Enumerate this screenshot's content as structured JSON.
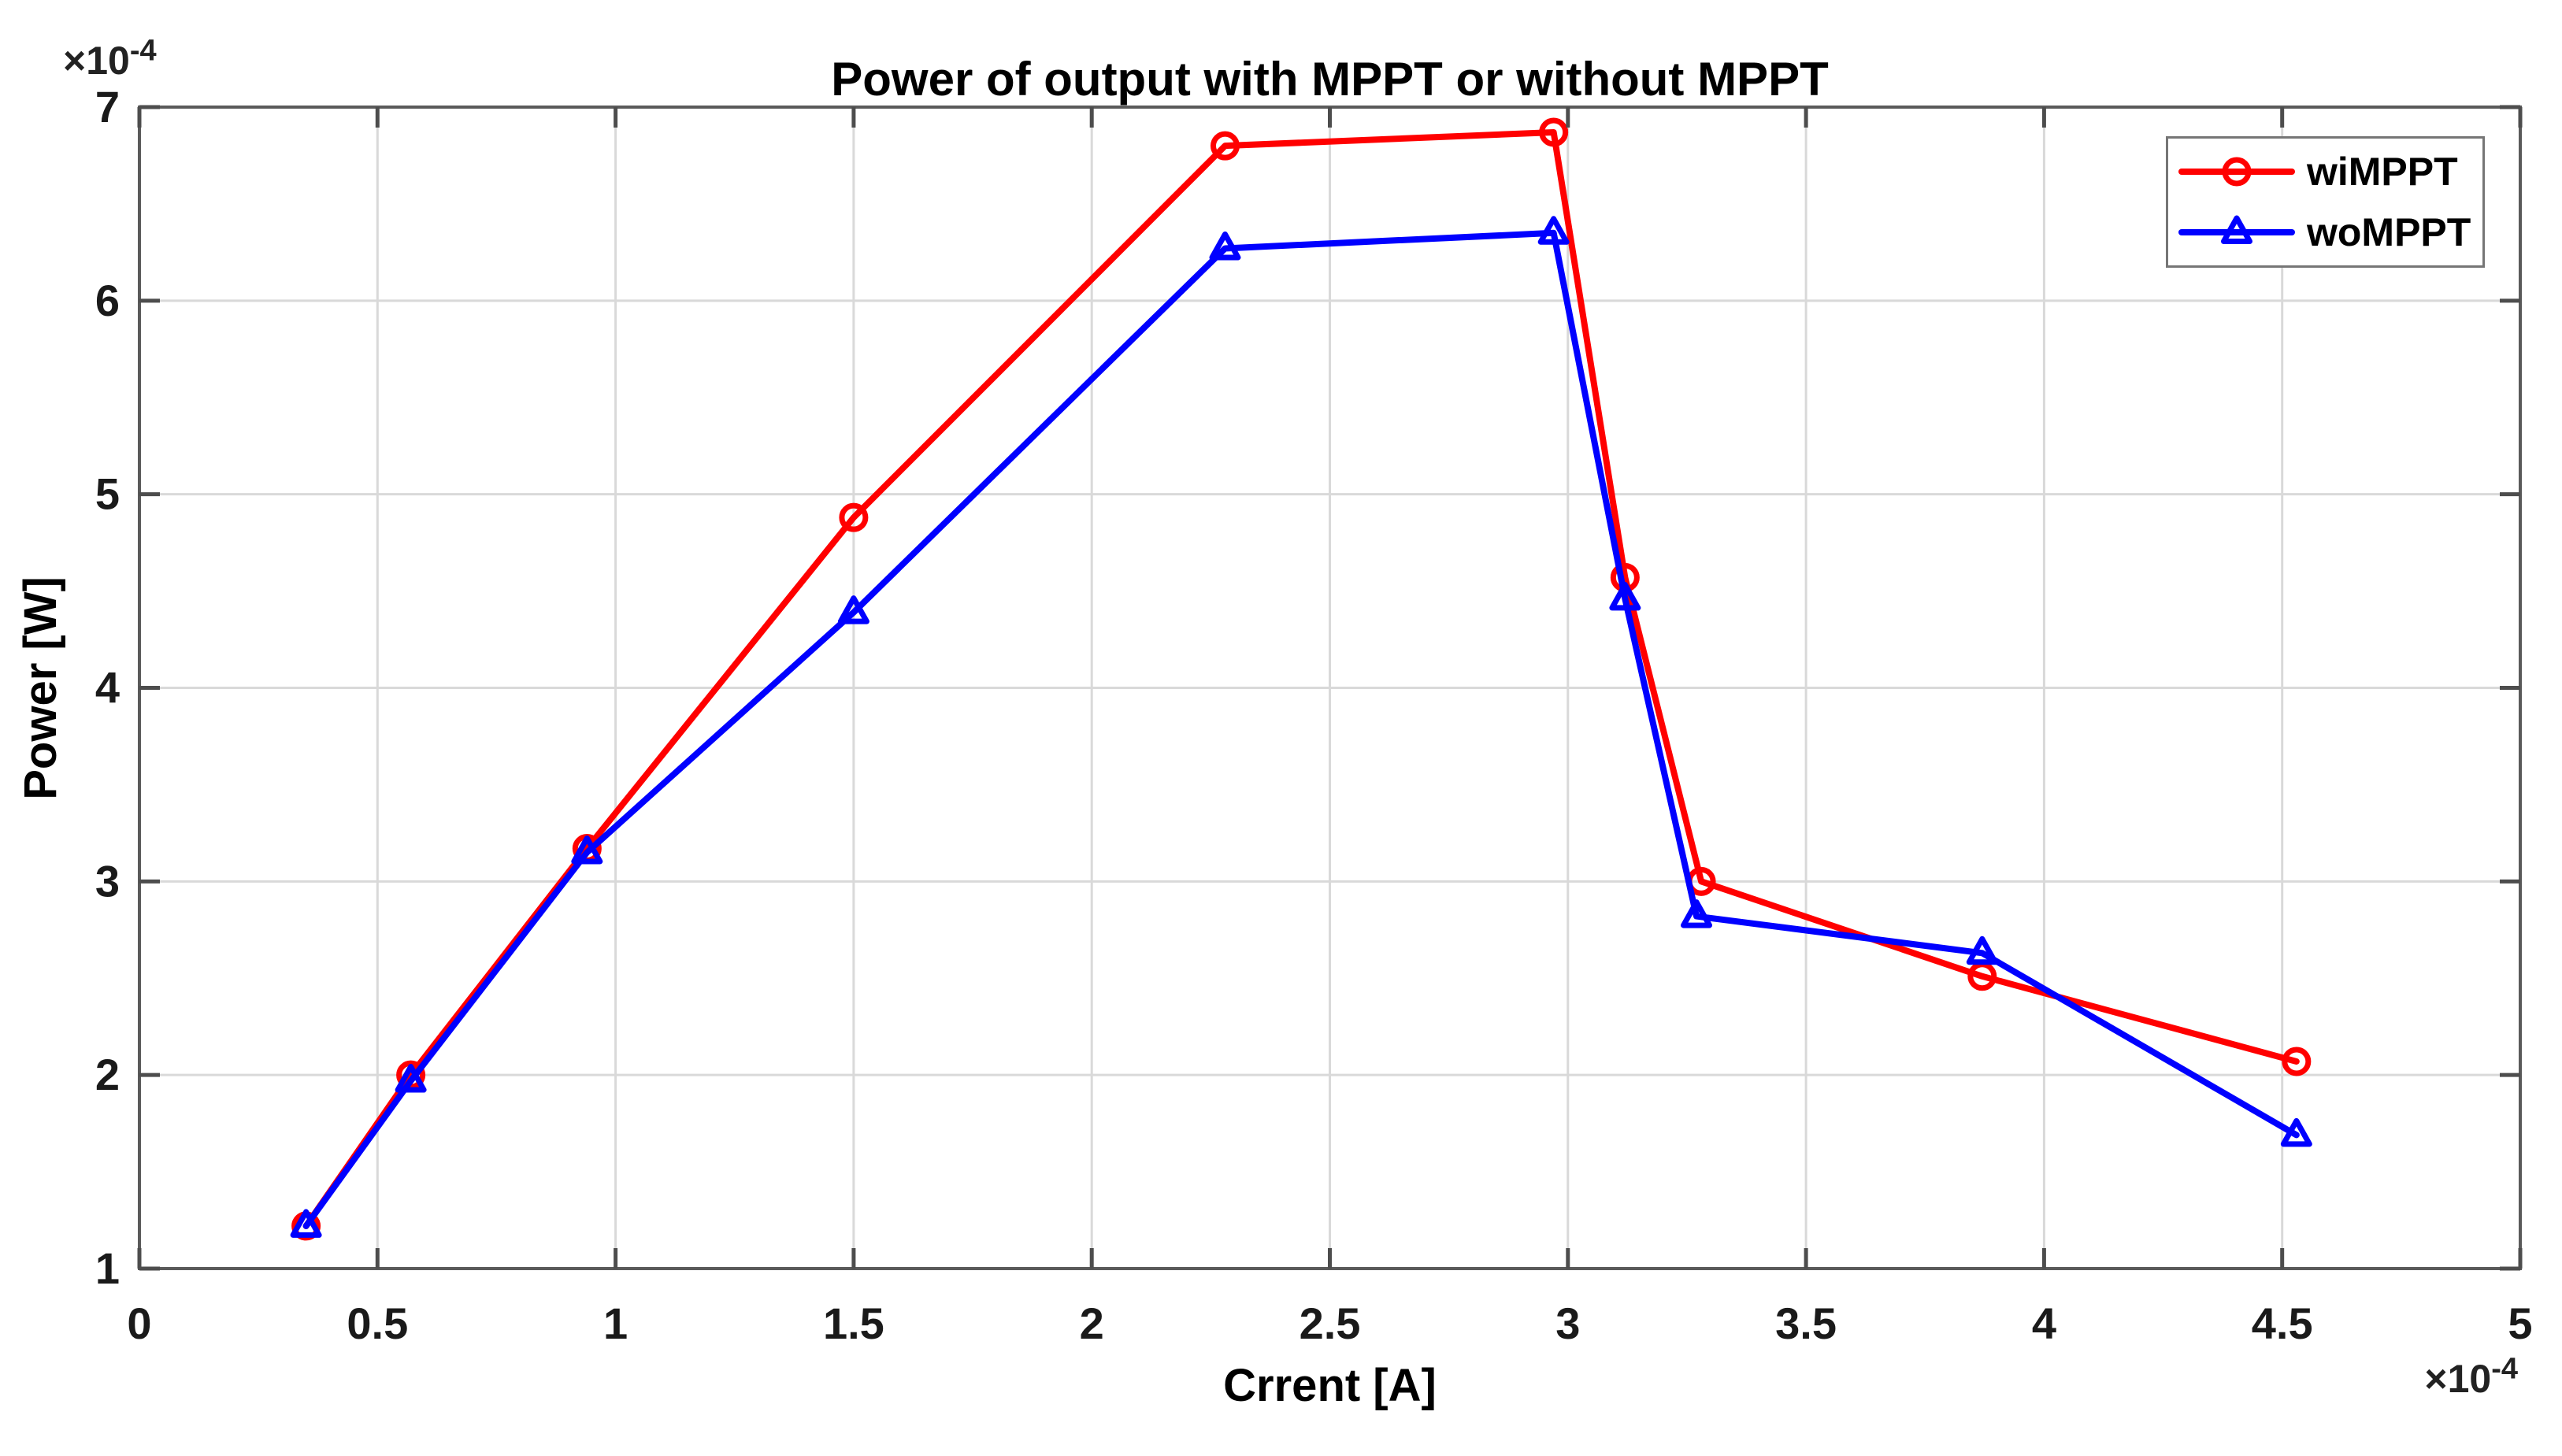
{
  "style": {
    "background": "#ffffff",
    "grid_color": "#d9d9d9",
    "axis_color": "#5a5a5a",
    "tick_color": "#4d4d4d",
    "tick_label_color": "#1a1a1a",
    "text_color": "#000000",
    "legend_border_color": "#767676"
  },
  "chart_data": {
    "type": "line",
    "title": "Power of output with MPPT or without MPPT",
    "xlabel": "Crrent [A]",
    "ylabel": "Power [W]",
    "x_scale_label": {
      "base": "×10",
      "exp": "-4"
    },
    "y_scale_label": {
      "base": "×10",
      "exp": "-4"
    },
    "xlim": [
      0,
      5
    ],
    "ylim": [
      1,
      7
    ],
    "x_ticks": [
      0,
      0.5,
      1,
      1.5,
      2,
      2.5,
      3,
      3.5,
      4,
      4.5,
      5
    ],
    "x_tick_labels": [
      "0",
      "0.5",
      "1",
      "1.5",
      "2",
      "2.5",
      "3",
      "3.5",
      "4",
      "4.5",
      "5"
    ],
    "y_ticks": [
      1,
      2,
      3,
      4,
      5,
      6,
      7
    ],
    "y_tick_labels": [
      "1",
      "2",
      "3",
      "4",
      "5",
      "6",
      "7"
    ],
    "grid": true,
    "legend_position": "top-right",
    "series": [
      {
        "name": "wiMPPT",
        "color": "#ff0000",
        "marker": "circle",
        "x": [
          0.35,
          0.57,
          0.94,
          1.5,
          2.28,
          2.97,
          3.12,
          3.28,
          3.87,
          4.53
        ],
        "y": [
          1.22,
          2.0,
          3.17,
          4.88,
          6.8,
          6.87,
          4.57,
          3.0,
          2.51,
          2.07
        ]
      },
      {
        "name": "woMPPT",
        "color": "#0000ff",
        "marker": "triangle",
        "x": [
          0.35,
          0.57,
          0.94,
          1.5,
          2.28,
          2.97,
          3.12,
          3.27,
          3.87,
          4.53
        ],
        "y": [
          1.22,
          1.97,
          3.15,
          4.39,
          6.27,
          6.35,
          4.46,
          2.82,
          2.63,
          1.69
        ]
      }
    ]
  }
}
